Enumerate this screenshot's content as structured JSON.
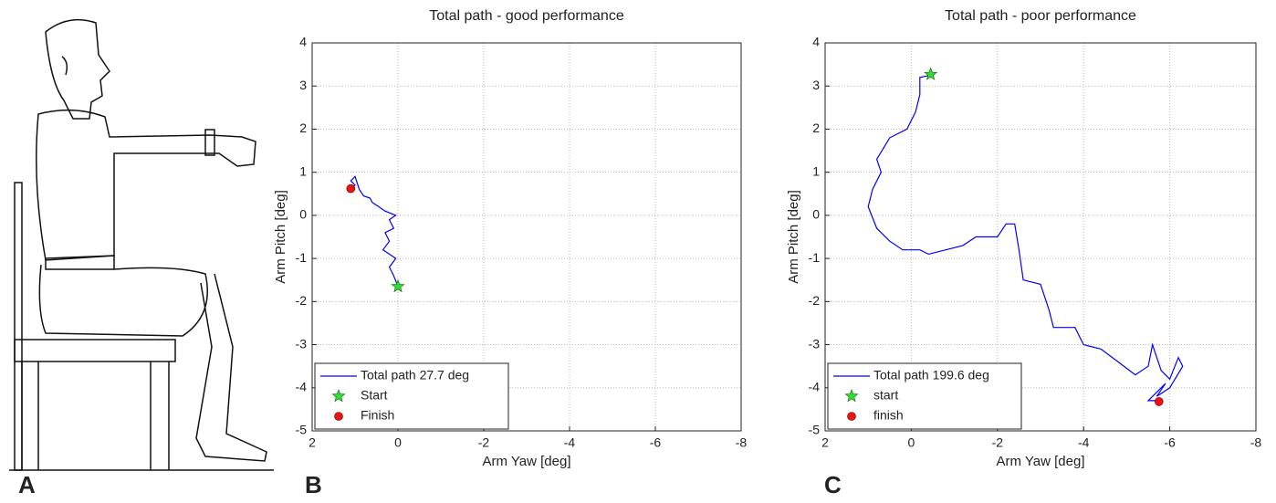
{
  "panels": [
    "A",
    "B",
    "C"
  ],
  "chart_data": [
    {
      "type": "line",
      "title": "Total path - good performance",
      "x_label": "Arm Yaw [deg]",
      "y_label": "Arm Pitch [deg]",
      "xlim": [
        2,
        -8
      ],
      "xticks": [
        2,
        0,
        -2,
        -4,
        -6,
        -8
      ],
      "ylim": [
        -5,
        4
      ],
      "yticks": [
        -5,
        -4,
        -3,
        -2,
        -1,
        0,
        1,
        2,
        3,
        4
      ],
      "grid": true,
      "legend": "lower left",
      "series": [
        {
          "name": "Total path 27.7 deg",
          "color": "#0000ff",
          "style": "line",
          "x": [
            0,
            0.1,
            0.2,
            0.05,
            0.2,
            0.35,
            0.2,
            0.3,
            0.1,
            0.2,
            0.05,
            0.3,
            0.45,
            0.6,
            0.65,
            0.8,
            0.9,
            1.0,
            1.1,
            1.0,
            1.1
          ],
          "values": [
            -1.65,
            -1.4,
            -1.2,
            -1.0,
            -0.9,
            -0.8,
            -0.6,
            -0.4,
            -0.3,
            -0.1,
            0.0,
            0.1,
            0.2,
            0.3,
            0.4,
            0.45,
            0.6,
            0.9,
            0.8,
            0.7,
            0.62
          ]
        },
        {
          "name": "Start",
          "color": "#33dd33",
          "style": "star",
          "x": [
            0
          ],
          "values": [
            -1.65
          ]
        },
        {
          "name": "Finish",
          "color": "#ee1111",
          "style": "circle",
          "x": [
            1.1
          ],
          "values": [
            0.62
          ]
        }
      ]
    },
    {
      "type": "line",
      "title": "Total path - poor performance",
      "x_label": "Arm Yaw [deg]",
      "y_label": "Arm Pitch [deg]",
      "xlim": [
        2,
        -8
      ],
      "xticks": [
        2,
        0,
        -2,
        -4,
        -6,
        -8
      ],
      "ylim": [
        -5,
        4
      ],
      "yticks": [
        -5,
        -4,
        -3,
        -2,
        -1,
        0,
        1,
        2,
        3,
        4
      ],
      "grid": true,
      "legend": "lower left",
      "series": [
        {
          "name": "Total path 199.6 deg",
          "color": "#0000ff",
          "style": "line",
          "x": [
            -0.45,
            -0.2,
            -0.2,
            -0.1,
            0.1,
            0.5,
            0.8,
            0.7,
            0.9,
            1.0,
            0.8,
            0.5,
            0.2,
            -0.2,
            -0.4,
            -0.8,
            -1.2,
            -1.5,
            -2.0,
            -2.2,
            -2.4,
            -2.5,
            -2.6,
            -3.0,
            -3.2,
            -3.3,
            -3.8,
            -4.0,
            -4.4,
            -4.8,
            -5.2,
            -5.5,
            -5.6,
            -5.8,
            -6.0,
            -6.2,
            -6.3,
            -6.0,
            -5.7,
            -5.9,
            -5.5,
            -5.75
          ],
          "values": [
            3.25,
            3.2,
            2.8,
            2.4,
            2.0,
            1.8,
            1.3,
            1.0,
            0.6,
            0.2,
            -0.3,
            -0.6,
            -0.8,
            -0.8,
            -0.9,
            -0.8,
            -0.7,
            -0.5,
            -0.5,
            -0.2,
            -0.2,
            -0.8,
            -1.5,
            -1.6,
            -2.2,
            -2.6,
            -2.6,
            -3.0,
            -3.1,
            -3.4,
            -3.7,
            -3.5,
            -3.0,
            -3.6,
            -3.8,
            -3.3,
            -3.5,
            -4.0,
            -4.2,
            -3.9,
            -4.3,
            -4.3
          ]
        },
        {
          "name": "start",
          "color": "#33dd33",
          "style": "star",
          "x": [
            -0.45
          ],
          "values": [
            3.27
          ]
        },
        {
          "name": "finish",
          "color": "#ee1111",
          "style": "circle",
          "x": [
            -5.75
          ],
          "values": [
            -4.32
          ]
        }
      ]
    }
  ]
}
